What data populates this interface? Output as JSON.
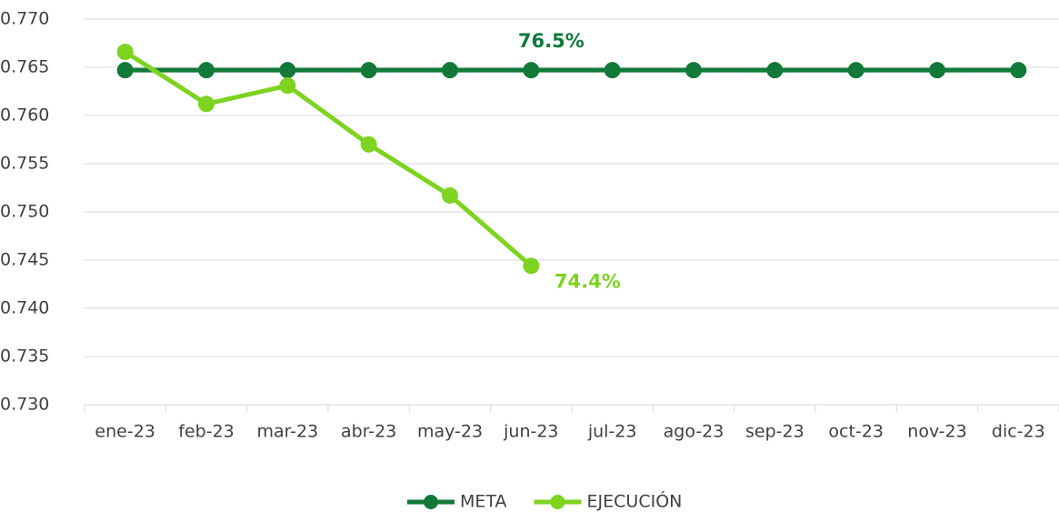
{
  "chart_data": {
    "type": "line",
    "categories": [
      "ene-23",
      "feb-23",
      "mar-23",
      "abr-23",
      "may-23",
      "jun-23",
      "jul-23",
      "ago-23",
      "sep-23",
      "oct-23",
      "nov-23",
      "dic-23"
    ],
    "series": [
      {
        "name": "META",
        "color": "#117a39",
        "values": [
          0.7647,
          0.7647,
          0.7647,
          0.7647,
          0.7647,
          0.7647,
          0.7647,
          0.7647,
          0.7647,
          0.7647,
          0.7647,
          0.7647
        ],
        "value_labels": [
          null,
          null,
          null,
          null,
          null,
          "76.5%",
          null,
          null,
          null,
          null,
          null,
          null
        ]
      },
      {
        "name": "EJECUCIÓN",
        "color": "#7ed321",
        "values": [
          0.7666,
          0.7612,
          0.7631,
          0.757,
          0.7517,
          0.7444,
          null,
          null,
          null,
          null,
          null,
          null
        ],
        "value_labels": [
          null,
          null,
          null,
          null,
          null,
          "74.4%",
          null,
          null,
          null,
          null,
          null,
          null
        ]
      }
    ],
    "ylim": [
      0.73,
      0.77
    ],
    "yticks": [
      {
        "value": 0.73,
        "label": "0.730"
      },
      0.735,
      {
        "value": 0.74,
        "label": "0.740"
      },
      0.745,
      {
        "value": 0.75,
        "label": "0.750"
      },
      0.755,
      {
        "value": 0.76,
        "label": "0.760"
      },
      0.765,
      {
        "value": 0.77,
        "label": "0.770"
      }
    ],
    "grid": true,
    "legend": "bottom"
  }
}
